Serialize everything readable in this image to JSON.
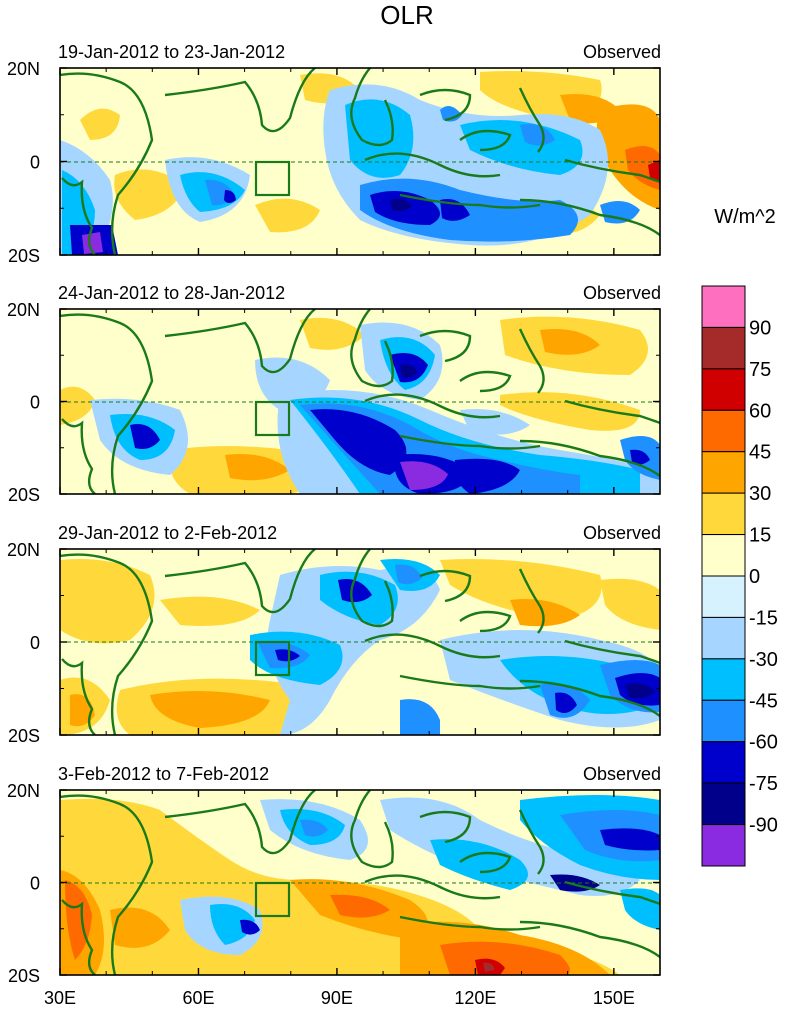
{
  "title": "OLR",
  "units": "W/m^2",
  "panels": [
    {
      "period": "19-Jan-2012 to 23-Jan-2012",
      "status": "Observed"
    },
    {
      "period": "24-Jan-2012 to 28-Jan-2012",
      "status": "Observed"
    },
    {
      "period": "29-Jan-2012 to 2-Feb-2012",
      "status": "Observed"
    },
    {
      "period": "3-Feb-2012 to 7-Feb-2012",
      "status": "Observed"
    }
  ],
  "lat_labels": [
    "20N",
    "0",
    "20S"
  ],
  "lon_labels": [
    "30E",
    "60E",
    "90E",
    "120E",
    "150E"
  ],
  "lon_ticks_deg": [
    30,
    60,
    90,
    120,
    150
  ],
  "lon_range": [
    30,
    160
  ],
  "lat_range": [
    -20,
    20
  ],
  "colorbar": {
    "levels": [
      "90",
      "75",
      "60",
      "45",
      "30",
      "15",
      "0",
      "-15",
      "-30",
      "-45",
      "-60",
      "-75",
      "-90"
    ],
    "colors": [
      "#ff6fc0",
      "#a52a2a",
      "#d00000",
      "#ff6a00",
      "#ffa500",
      "#ffd93b",
      "#ffffcc",
      "#d6f2ff",
      "#a6d6ff",
      "#00bfff",
      "#1e90ff",
      "#0000cd",
      "#00008b",
      "#8a2be2"
    ]
  },
  "coast_color": "#1a7a1a",
  "feature_colors": {
    "positive": "#ffd93b",
    "strong_positive": "#ffa500",
    "negative": "#00bfff",
    "strong_negative": "#0000cd"
  }
}
